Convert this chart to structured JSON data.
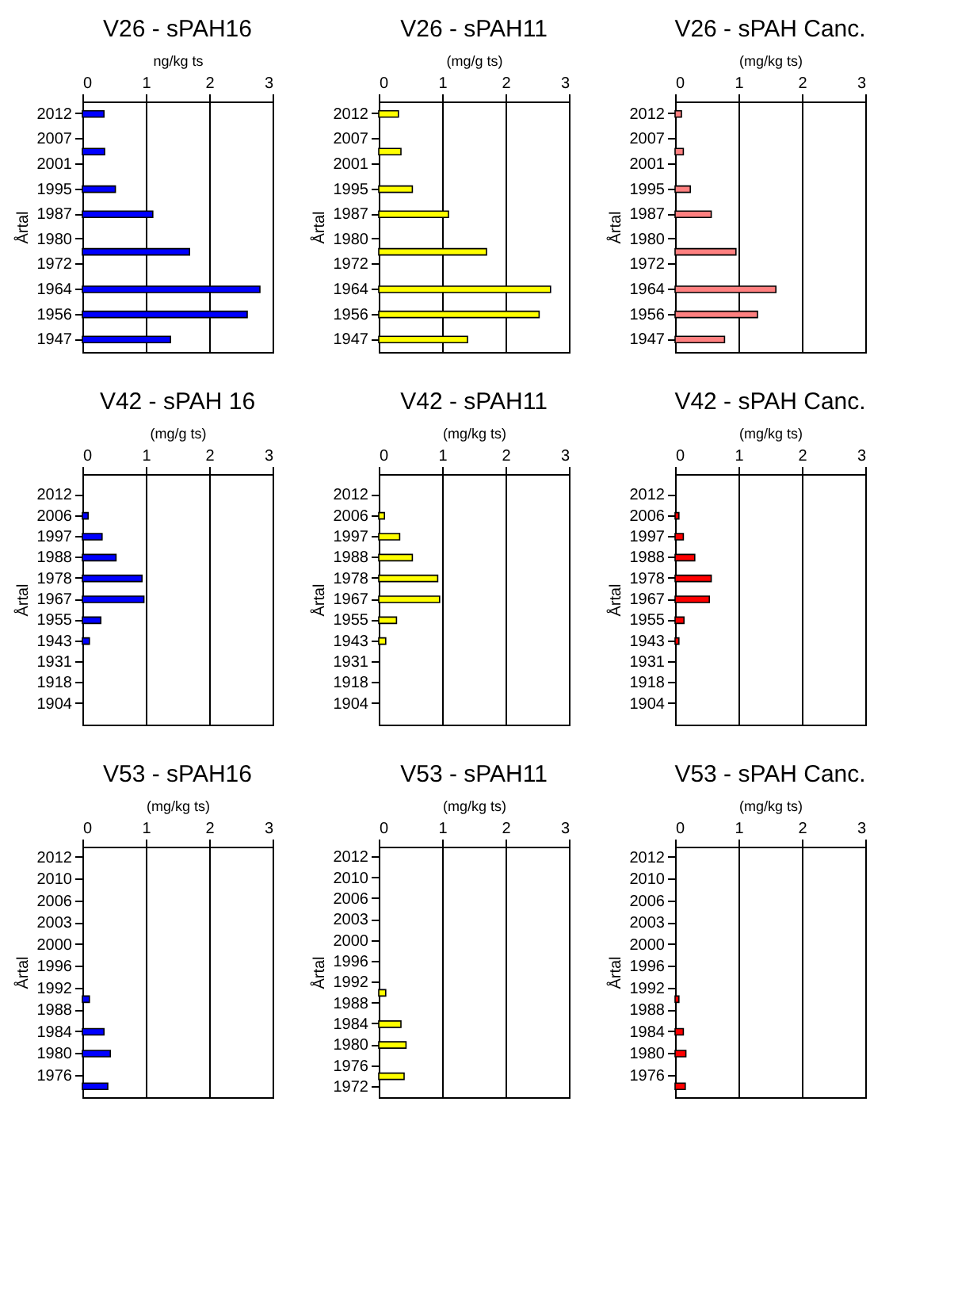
{
  "chart_data": [
    {
      "type": "bar",
      "orientation": "horizontal",
      "title": "V26 - sPAH16",
      "xlabel": "ng/kg ts",
      "ylabel": "Årtal",
      "color": "#0000ff",
      "categories": [
        "2012",
        null,
        "2007",
        null,
        "2001",
        null,
        "1995",
        null,
        "1987",
        null,
        "1980",
        null,
        "1972",
        null,
        "1964",
        null,
        "1956",
        null,
        "1947"
      ],
      "values": [
        0.34,
        null,
        null,
        0.35,
        null,
        null,
        0.52,
        null,
        1.11,
        null,
        null,
        1.69,
        null,
        null,
        2.8,
        null,
        2.6,
        null,
        1.39
      ],
      "xlim": [
        0,
        3
      ],
      "xticks": [
        0,
        1,
        2,
        3
      ],
      "grid": "x"
    },
    {
      "type": "bar",
      "orientation": "horizontal",
      "title": "V26 - sPAH11",
      "xlabel": "(mg/g ts)",
      "ylabel": "Årtal",
      "color": "#ffff00",
      "categories": [
        "2012",
        null,
        "2007",
        null,
        "2001",
        null,
        "1995",
        null,
        "1987",
        null,
        "1980",
        null,
        "1972",
        null,
        "1964",
        null,
        "1956",
        null,
        "1947"
      ],
      "values": [
        0.31,
        null,
        null,
        0.35,
        null,
        null,
        0.53,
        null,
        1.1,
        null,
        null,
        1.7,
        null,
        null,
        2.71,
        null,
        2.53,
        null,
        1.4
      ],
      "xlim": [
        0,
        3
      ],
      "xticks": [
        0,
        1,
        2,
        3
      ],
      "grid": "x"
    },
    {
      "type": "bar",
      "orientation": "horizontal",
      "title": "V26 - sPAH Canc.",
      "xlabel": "(mg/kg ts)",
      "ylabel": "Årtal",
      "color": "#ff8080",
      "categories": [
        "2012",
        null,
        "2007",
        null,
        "2001",
        null,
        "1995",
        null,
        "1987",
        null,
        "1980",
        null,
        "1972",
        null,
        "1964",
        null,
        "1956",
        null,
        "1947"
      ],
      "values": [
        0.1,
        null,
        null,
        0.13,
        null,
        null,
        0.24,
        null,
        0.57,
        null,
        null,
        0.96,
        null,
        null,
        1.59,
        null,
        1.3,
        null,
        0.78
      ],
      "xlim": [
        0,
        3
      ],
      "xticks": [
        0,
        1,
        2,
        3
      ],
      "grid": "x"
    },
    {
      "type": "bar",
      "orientation": "horizontal",
      "title": "V42 - sPAH 16",
      "xlabel": "(mg/g ts)",
      "ylabel": "Årtal",
      "color": "#0000ff",
      "categories": [
        "2012",
        "2006",
        "1997",
        "1988",
        "1978",
        "1967",
        "1955",
        "1943",
        "1931",
        "1918",
        "1904"
      ],
      "values": [
        null,
        0.09,
        0.31,
        0.53,
        0.94,
        0.97,
        0.29,
        0.11,
        null,
        null,
        null
      ],
      "xlim": [
        0,
        3
      ],
      "xticks": [
        0,
        1,
        2,
        3
      ],
      "grid": "x"
    },
    {
      "type": "bar",
      "orientation": "horizontal",
      "title": "V42 - sPAH11",
      "xlabel": "(mg/kg ts)",
      "ylabel": "Årtal",
      "color": "#ffff00",
      "categories": [
        "2012",
        "2006",
        "1997",
        "1988",
        "1978",
        "1967",
        "1955",
        "1943",
        "1931",
        "1918",
        "1904"
      ],
      "values": [
        null,
        0.09,
        0.33,
        0.53,
        0.93,
        0.96,
        0.28,
        0.11,
        null,
        null,
        null
      ],
      "xlim": [
        0,
        3
      ],
      "xticks": [
        0,
        1,
        2,
        3
      ],
      "grid": "x"
    },
    {
      "type": "bar",
      "orientation": "horizontal",
      "title": "V42 - sPAH Canc.",
      "xlabel": "(mg/kg ts)",
      "ylabel": "Årtal",
      "color": "#ff0000",
      "categories": [
        "2012",
        "2006",
        "1997",
        "1988",
        "1978",
        "1967",
        "1955",
        "1943",
        "1931",
        "1918",
        "1904"
      ],
      "values": [
        null,
        0.06,
        0.13,
        0.31,
        0.57,
        0.54,
        0.14,
        0.06,
        null,
        null,
        null
      ],
      "xlim": [
        0,
        3
      ],
      "xticks": [
        0,
        1,
        2,
        3
      ],
      "grid": "x"
    },
    {
      "type": "bar",
      "orientation": "horizontal",
      "title": "V53 - sPAH16",
      "xlabel": "(mg/kg ts)",
      "ylabel": "Årtal",
      "color": "#0000ff",
      "categories": [
        "2012",
        null,
        "2010",
        null,
        "2006",
        null,
        "2003",
        null,
        "2000",
        null,
        "1996",
        null,
        "1992",
        null,
        "1988",
        null,
        "1984",
        null,
        "1980",
        null,
        "1976",
        null
      ],
      "values": [
        null,
        null,
        null,
        null,
        null,
        null,
        null,
        null,
        null,
        null,
        null,
        null,
        null,
        0.11,
        null,
        null,
        0.34,
        null,
        0.44,
        null,
        null,
        0.4
      ],
      "xlim": [
        0,
        3
      ],
      "xticks": [
        0,
        1,
        2,
        3
      ],
      "grid": "x"
    },
    {
      "type": "bar",
      "orientation": "horizontal",
      "title": "V53 - sPAH11",
      "xlabel": "(mg/kg ts)",
      "ylabel": "Årtal",
      "color": "#ffff00",
      "categories": [
        "2012",
        null,
        "2010",
        null,
        "2006",
        null,
        "2003",
        null,
        "2000",
        null,
        "1996",
        null,
        "1992",
        null,
        "1988",
        null,
        "1984",
        null,
        "1980",
        null,
        "1976",
        null,
        "1972"
      ],
      "values": [
        null,
        null,
        null,
        null,
        null,
        null,
        null,
        null,
        null,
        null,
        null,
        null,
        null,
        0.11,
        null,
        null,
        0.35,
        null,
        0.43,
        null,
        null,
        0.4,
        null
      ],
      "xlim": [
        0,
        3
      ],
      "xticks": [
        0,
        1,
        2,
        3
      ],
      "grid": "x"
    },
    {
      "type": "bar",
      "orientation": "horizontal",
      "title": "V53 - sPAH Canc.",
      "xlabel": "(mg/kg ts)",
      "ylabel": "Årtal",
      "color": "#ff0000",
      "categories": [
        "2012",
        null,
        "2010",
        null,
        "2006",
        null,
        "2003",
        null,
        "2000",
        null,
        "1996",
        null,
        "1992",
        null,
        "1988",
        null,
        "1984",
        null,
        "1980",
        null,
        "1976",
        null
      ],
      "values": [
        null,
        null,
        null,
        null,
        null,
        null,
        null,
        null,
        null,
        null,
        null,
        null,
        null,
        0.06,
        null,
        null,
        0.13,
        null,
        0.17,
        null,
        null,
        0.16
      ],
      "xlim": [
        0,
        3
      ],
      "xticks": [
        0,
        1,
        2,
        3
      ],
      "grid": "x"
    }
  ]
}
